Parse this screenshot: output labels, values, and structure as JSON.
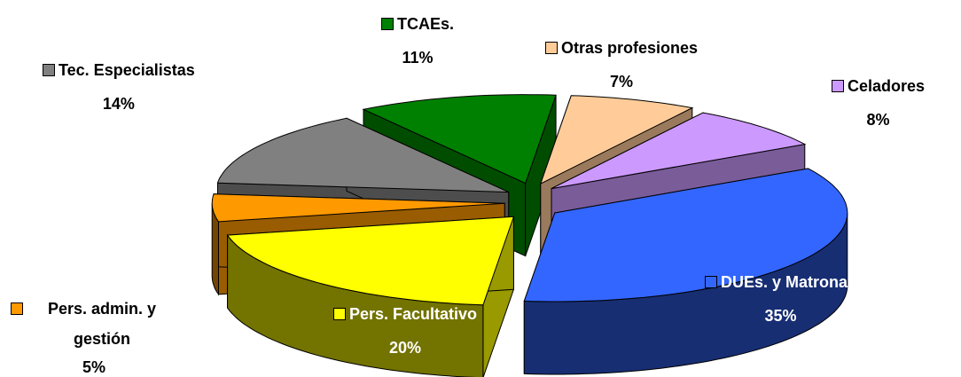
{
  "chart_data": {
    "type": "pie",
    "categories": [
      "DUEs. y Matronas",
      "Pers. Facultativo",
      "Pers. admin. y gestión",
      "Tec. Especialistas",
      "TCAEs.",
      "Otras profesiones",
      "Celadores"
    ],
    "values": [
      35,
      20,
      5,
      14,
      11,
      7,
      8
    ],
    "value_labels": [
      "35%",
      "20%",
      "5%",
      "14%",
      "11%",
      "7%",
      "8%"
    ],
    "colors": [
      "#3366ff",
      "#ffff00",
      "#ff9900",
      "#808080",
      "#008000",
      "#ffcc99",
      "#cc99ff"
    ]
  }
}
